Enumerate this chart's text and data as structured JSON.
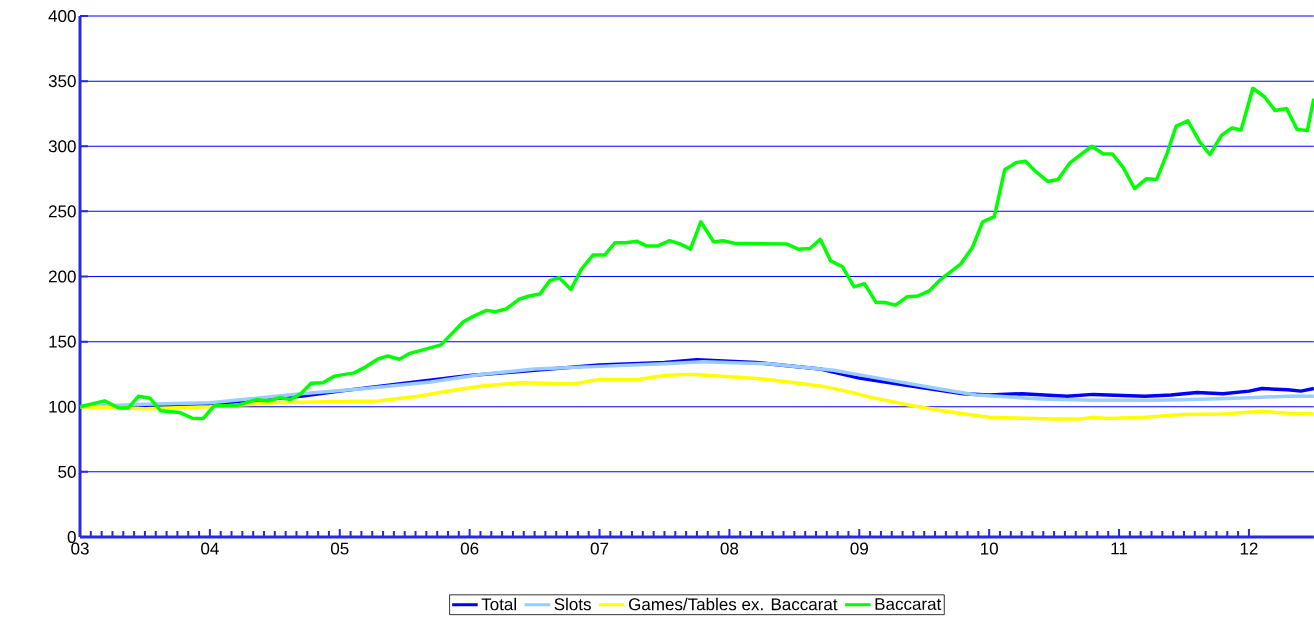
{
  "chart_data": {
    "type": "line",
    "xlim": [
      3,
      12.5
    ],
    "ylim": [
      0,
      400
    ],
    "xticks": [
      {
        "value": 3,
        "label": "03"
      },
      {
        "value": 4,
        "label": "04"
      },
      {
        "value": 5,
        "label": "05"
      },
      {
        "value": 6,
        "label": "06"
      },
      {
        "value": 7,
        "label": "07"
      },
      {
        "value": 8,
        "label": "08"
      },
      {
        "value": 9,
        "label": "09"
      },
      {
        "value": 10,
        "label": "10"
      },
      {
        "value": 11,
        "label": "11"
      },
      {
        "value": 12,
        "label": "12"
      }
    ],
    "yticks": [
      0,
      50,
      100,
      150,
      200,
      250,
      300,
      350,
      400
    ],
    "grid": "y",
    "legend": "bottom",
    "marker": "none",
    "line_style": "solid",
    "series": [
      {
        "name": "Total",
        "color": "#0000ff",
        "x": [
          3,
          3.5,
          4,
          4.7,
          5,
          5.5,
          6,
          6.5,
          7,
          7.5,
          7.75,
          8.2,
          8.7,
          9,
          9.4,
          9.8,
          10,
          10.25,
          10.6,
          10.8,
          11.2,
          11.4,
          11.6,
          11.8,
          12,
          12.1,
          12.3,
          12.4,
          12.5
        ],
        "values": [
          100,
          101,
          102,
          108,
          112,
          118,
          124,
          128,
          132,
          134,
          136,
          134,
          129,
          122,
          116,
          110,
          109,
          110,
          108,
          109.5,
          108,
          109,
          111,
          110,
          112,
          114,
          113,
          112,
          114
        ]
      },
      {
        "name": "Slots",
        "color": "#99ccff",
        "x": [
          3,
          3.5,
          4,
          4.7,
          5.2,
          5.7,
          6.1,
          6.5,
          7,
          7.5,
          7.8,
          8.3,
          8.8,
          9.2,
          9.6,
          9.9,
          10.4,
          10.8,
          11.3,
          11.7,
          12,
          12.3,
          12.5
        ],
        "values": [
          100,
          102,
          103,
          110,
          114,
          119,
          125,
          129,
          131,
          133,
          134.5,
          133,
          128,
          121,
          114,
          109,
          106,
          105,
          105,
          106,
          107,
          108,
          108
        ]
      },
      {
        "name": "Games/Tables ex. Baccarat",
        "color": "#ffff00",
        "x": [
          3,
          3.5,
          4,
          4.5,
          5,
          5.3,
          5.6,
          5.9,
          6.1,
          6.4,
          6.8,
          7,
          7.3,
          7.5,
          7.7,
          8,
          8.3,
          8.7,
          8.9,
          9.1,
          9.4,
          9.7,
          10,
          10.5,
          10.7,
          10.8,
          10.9,
          11.2,
          11.5,
          11.8,
          12.1,
          12.3,
          12.5
        ],
        "values": [
          100,
          98.5,
          100,
          103,
          104,
          104.5,
          108,
          113,
          116,
          118.5,
          117.5,
          121,
          121,
          124,
          125,
          123,
          121,
          116,
          112,
          107,
          101,
          96,
          92,
          90.5,
          90.5,
          92,
          91,
          92,
          94,
          94.5,
          96.5,
          95,
          94.5
        ]
      },
      {
        "name": "Baccarat",
        "color": "#00ff00",
        "x": [
          3,
          3.19,
          3.3,
          3.37,
          3.45,
          3.54,
          3.62,
          3.77,
          3.87,
          3.95,
          4.03,
          4.21,
          4.36,
          4.45,
          4.54,
          4.62,
          4.7,
          4.78,
          4.87,
          4.96,
          5.11,
          5.19,
          5.29,
          5.37,
          5.46,
          5.54,
          5.78,
          5.95,
          6.02,
          6.13,
          6.2,
          6.28,
          6.38,
          6.46,
          6.54,
          6.62,
          6.69,
          6.78,
          6.86,
          6.95,
          7.04,
          7.12,
          7.2,
          7.29,
          7.36,
          7.45,
          7.54,
          7.62,
          7.7,
          7.78,
          7.88,
          7.95,
          8.04,
          8.44,
          8.53,
          8.62,
          8.7,
          8.78,
          8.87,
          8.96,
          9.04,
          9.13,
          9.2,
          9.28,
          9.37,
          9.45,
          9.54,
          9.63,
          9.78,
          9.87,
          9.95,
          10.04,
          10.12,
          10.21,
          10.28,
          10.36,
          10.45,
          10.53,
          10.62,
          10.79,
          10.88,
          10.95,
          11.03,
          11.12,
          11.21,
          11.29,
          11.37,
          11.44,
          11.53,
          11.62,
          11.7,
          11.79,
          11.87,
          11.94,
          12.03,
          12.12,
          12.2,
          12.29,
          12.37,
          12.45,
          12.5
        ],
        "values": [
          100,
          104.5,
          99,
          99,
          108,
          106.5,
          97,
          95.5,
          91,
          91,
          100.5,
          101,
          105.5,
          104.5,
          107,
          105.5,
          110,
          118,
          118.5,
          123.5,
          126,
          130,
          136.5,
          139,
          136.5,
          141,
          147.5,
          165,
          169,
          174,
          173,
          175,
          182.5,
          185,
          186.5,
          197,
          199,
          190,
          205.5,
          216.5,
          216.5,
          226,
          226,
          227,
          223.5,
          223.5,
          227.5,
          225,
          221,
          242,
          226.5,
          227.5,
          225.5,
          225,
          221,
          221.5,
          228.5,
          212,
          207.5,
          192,
          194.5,
          180,
          180,
          178,
          184.5,
          185,
          189,
          198,
          209.5,
          222,
          242,
          246,
          282,
          287.5,
          288.5,
          280.5,
          273,
          274.5,
          287,
          300,
          294,
          294,
          284,
          267.5,
          275,
          274.5,
          294.5,
          315.5,
          319.5,
          303.5,
          293.5,
          308.5,
          314,
          312.5,
          344.5,
          338,
          327.5,
          329,
          313,
          312,
          336.5
        ]
      }
    ]
  }
}
